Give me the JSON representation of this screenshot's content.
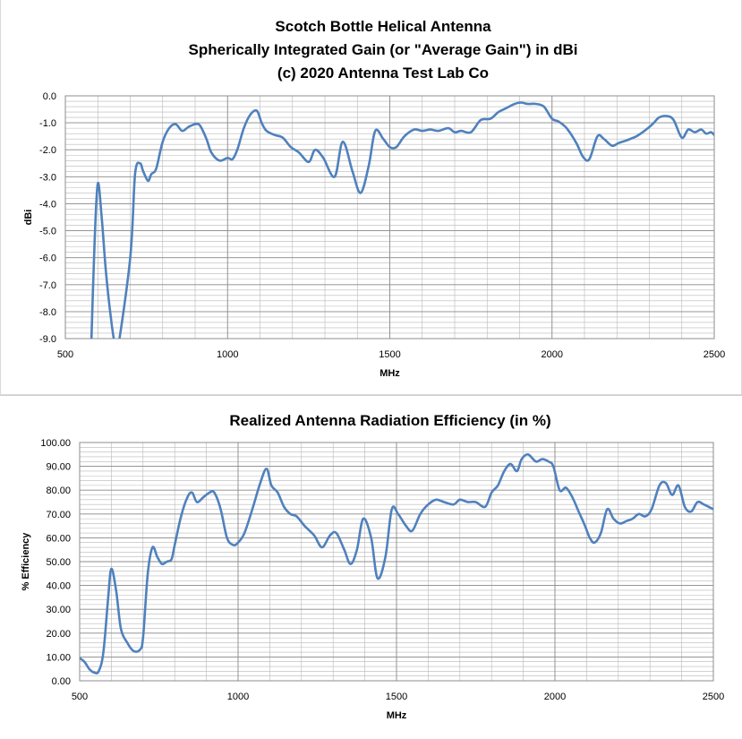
{
  "chart_data": [
    {
      "type": "line",
      "title_lines": [
        "Scotch Bottle Helical Antenna",
        "Spherically Integrated Gain (or \"Average Gain\") in dBi",
        "(c) 2020 Antenna Test Lab Co"
      ],
      "xlabel": "MHz",
      "ylabel": "dBi",
      "xlim": [
        500,
        2500
      ],
      "ylim": [
        -9,
        0
      ],
      "xticks": [
        500,
        1000,
        1500,
        2000,
        2500
      ],
      "xtick_labels": [
        "500",
        "1000",
        "1500",
        "2000",
        "2500"
      ],
      "yticks": [
        0,
        -1,
        -2,
        -3,
        -4,
        -5,
        -6,
        -7,
        -8,
        -9
      ],
      "ytick_labels": [
        "0.0",
        "-1.0",
        "-2.0",
        "-3.0",
        "-4.0",
        "-5.0",
        "-6.0",
        "-7.0",
        "-8.0",
        "-9.0"
      ],
      "grid": true,
      "line_color": "#4f81bd",
      "series": [
        {
          "name": "Average Gain",
          "x": [
            580,
            590,
            600,
            612,
            625,
            640,
            652,
            660,
            700,
            715,
            730,
            740,
            755,
            765,
            780,
            800,
            820,
            840,
            860,
            880,
            900,
            915,
            935,
            950,
            975,
            1000,
            1015,
            1030,
            1050,
            1070,
            1090,
            1105,
            1120,
            1145,
            1170,
            1195,
            1220,
            1250,
            1270,
            1295,
            1330,
            1355,
            1385,
            1410,
            1435,
            1455,
            1480,
            1500,
            1520,
            1545,
            1575,
            1600,
            1625,
            1650,
            1680,
            1700,
            1720,
            1750,
            1780,
            1810,
            1835,
            1860,
            1885,
            1905,
            1925,
            1950,
            1975,
            2000,
            2020,
            2045,
            2075,
            2095,
            2115,
            2140,
            2160,
            2185,
            2205,
            2230,
            2260,
            2285,
            2310,
            2330,
            2355,
            2375,
            2400,
            2420,
            2440,
            2460,
            2475,
            2490,
            2500
          ],
          "y": [
            -9.2,
            -5.5,
            -3.25,
            -4.5,
            -6.5,
            -8.2,
            -9.2,
            -9.5,
            -6.0,
            -2.9,
            -2.5,
            -2.8,
            -3.15,
            -2.9,
            -2.7,
            -1.7,
            -1.2,
            -1.05,
            -1.3,
            -1.15,
            -1.05,
            -1.1,
            -1.6,
            -2.1,
            -2.4,
            -2.3,
            -2.35,
            -2.0,
            -1.2,
            -0.7,
            -0.55,
            -1.0,
            -1.3,
            -1.45,
            -1.55,
            -1.9,
            -2.1,
            -2.45,
            -2.0,
            -2.3,
            -3.0,
            -1.7,
            -2.8,
            -3.6,
            -2.6,
            -1.3,
            -1.6,
            -1.9,
            -1.9,
            -1.5,
            -1.25,
            -1.3,
            -1.25,
            -1.3,
            -1.2,
            -1.35,
            -1.3,
            -1.35,
            -0.9,
            -0.85,
            -0.6,
            -0.45,
            -0.3,
            -0.25,
            -0.3,
            -0.3,
            -0.4,
            -0.85,
            -0.95,
            -1.2,
            -1.75,
            -2.25,
            -2.35,
            -1.5,
            -1.6,
            -1.85,
            -1.75,
            -1.65,
            -1.5,
            -1.3,
            -1.05,
            -0.8,
            -0.75,
            -0.9,
            -1.55,
            -1.25,
            -1.35,
            -1.25,
            -1.4,
            -1.35,
            -1.45
          ]
        }
      ]
    },
    {
      "type": "line",
      "title_lines": [
        "Realized Antenna Radiation Efficiency (in %)"
      ],
      "xlabel": "MHz",
      "ylabel": "% Efficiency",
      "xlim": [
        500,
        2500
      ],
      "ylim": [
        0,
        100
      ],
      "xticks": [
        500,
        1000,
        1500,
        2000,
        2500
      ],
      "xtick_labels": [
        "500",
        "1000",
        "1500",
        "2000",
        "2500"
      ],
      "yticks": [
        0,
        10,
        20,
        30,
        40,
        50,
        60,
        70,
        80,
        90,
        100
      ],
      "ytick_labels": [
        "0.00",
        "10.00",
        "20.00",
        "30.00",
        "40.00",
        "50.00",
        "60.00",
        "70.00",
        "80.00",
        "90.00",
        "100.00"
      ],
      "grid": true,
      "line_color": "#4f81bd",
      "series": [
        {
          "name": "Efficiency",
          "x": [
            500,
            515,
            530,
            545,
            560,
            575,
            590,
            600,
            615,
            630,
            650,
            670,
            690,
            700,
            715,
            730,
            745,
            760,
            775,
            790,
            800,
            820,
            840,
            855,
            870,
            890,
            910,
            925,
            945,
            965,
            985,
            1000,
            1020,
            1045,
            1070,
            1090,
            1105,
            1125,
            1145,
            1165,
            1185,
            1210,
            1240,
            1265,
            1290,
            1310,
            1335,
            1355,
            1375,
            1395,
            1420,
            1440,
            1465,
            1485,
            1505,
            1530,
            1550,
            1575,
            1600,
            1625,
            1650,
            1680,
            1700,
            1725,
            1750,
            1780,
            1800,
            1820,
            1840,
            1860,
            1880,
            1895,
            1915,
            1940,
            1960,
            1980,
            1995,
            2015,
            2035,
            2055,
            2075,
            2095,
            2110,
            2125,
            2145,
            2165,
            2185,
            2205,
            2225,
            2245,
            2265,
            2285,
            2305,
            2330,
            2350,
            2370,
            2390,
            2410,
            2430,
            2450,
            2470,
            2485,
            2500
          ],
          "y": [
            9.5,
            8.0,
            5.0,
            3.5,
            4.0,
            12.0,
            35.0,
            47.0,
            38.0,
            22.0,
            16.0,
            12.5,
            13.0,
            18.0,
            45.0,
            56.0,
            52.0,
            49.0,
            50.0,
            51.0,
            57.0,
            69.0,
            77.0,
            79.0,
            75.0,
            77.0,
            79.0,
            79.0,
            72.0,
            60.0,
            57.0,
            58.0,
            62.0,
            72.0,
            83.0,
            89.0,
            82.0,
            79.0,
            73.0,
            70.0,
            69.0,
            65.0,
            61.0,
            56.0,
            61.0,
            62.0,
            55.0,
            49.0,
            55.0,
            68.0,
            60.0,
            43.0,
            52.0,
            72.0,
            70.0,
            65.0,
            63.0,
            70.0,
            74.0,
            76.0,
            75.0,
            74.0,
            76.0,
            75.0,
            75.0,
            73.0,
            79.0,
            82.0,
            88.0,
            91.0,
            88.0,
            93.0,
            95.0,
            92.0,
            93.0,
            92.0,
            90.0,
            80.0,
            81.0,
            77.0,
            71.0,
            65.0,
            60.0,
            58.0,
            62.0,
            72.0,
            68.0,
            66.0,
            67.0,
            68.0,
            70.0,
            69.0,
            72.0,
            82.0,
            83.0,
            78.0,
            82.0,
            73.0,
            71.0,
            75.0,
            74.0,
            73.0,
            72.0
          ]
        }
      ]
    }
  ]
}
